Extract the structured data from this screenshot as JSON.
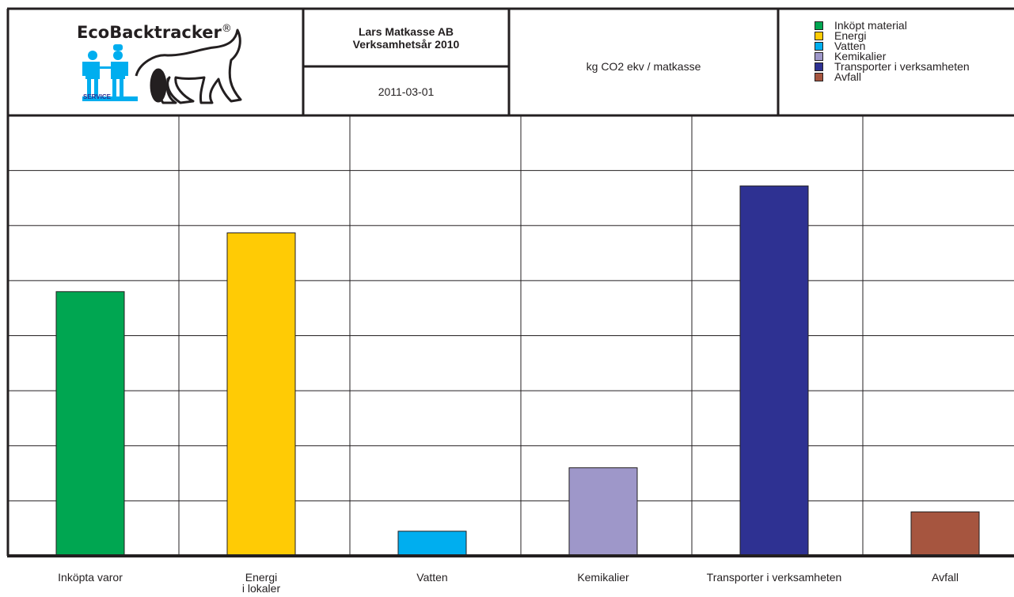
{
  "header": {
    "logo": {
      "name": "EcoBacktracker",
      "reg_mark": "®",
      "service_text": "SERVICE"
    },
    "company": "Lars Matkasse AB",
    "fiscal_year": "Verksamhetsår 2010",
    "date": "2011-03-01",
    "unit": "kg CO2 ekv / matkasse"
  },
  "legend": [
    {
      "label": "Inköpt material",
      "color": "#00a651"
    },
    {
      "label": "Energi",
      "color": "#ffcb05"
    },
    {
      "label": "Vatten",
      "color": "#00aeef"
    },
    {
      "label": "Kemikalier",
      "color": "#9e97c9"
    },
    {
      "label": "Transporter i verksamheten",
      "color": "#2e3192"
    },
    {
      "label": "Avfall",
      "color": "#a6553f"
    }
  ],
  "chart_data": {
    "type": "bar",
    "categories": [
      "Inköpta varor",
      "Energi i lokaler",
      "Vatten",
      "Kemikalier",
      "Transporter i verksamheten",
      "Avfall"
    ],
    "category_labels": [
      [
        "Inköpta varor"
      ],
      [
        "Energi",
        "i lokaler"
      ],
      [
        "Vatten"
      ],
      [
        "Kemikalier"
      ],
      [
        "Transporter i verksamheten"
      ],
      [
        "Avfall"
      ]
    ],
    "values": [
      4.5,
      5.5,
      0.42,
      1.5,
      6.3,
      0.75
    ],
    "colors": [
      "#00a651",
      "#ffcb05",
      "#00aeef",
      "#9e97c9",
      "#2e3192",
      "#a6553f"
    ],
    "ylim": [
      0,
      7.5
    ],
    "gridlines": 8,
    "grid": true,
    "title": "",
    "xlabel": "",
    "ylabel": ""
  }
}
